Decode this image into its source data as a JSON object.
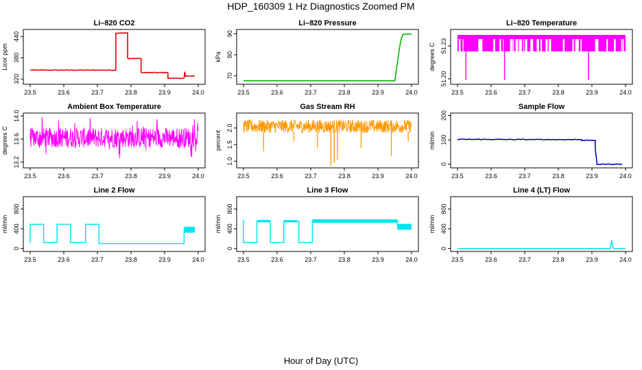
{
  "figure": {
    "title": "HDP_160309  1 Hz Diagnostics Zoomed PM",
    "xlabel": "Hour of Day (UTC)"
  },
  "chart_data": [
    {
      "type": "line",
      "title": "Li–820 CO2",
      "ylabel": "Licor ppm",
      "color": "#dd0000",
      "xlim": [
        23.5,
        24.0
      ],
      "ylim": [
        305,
        460
      ],
      "xticks": [
        "23.5",
        "23.6",
        "23.7",
        "23.8",
        "23.9",
        "24.0"
      ],
      "yticks": [
        320,
        380,
        440
      ],
      "ytick_labels": [
        "320",
        "380",
        "440"
      ],
      "x": [
        23.5,
        23.755,
        23.755,
        23.79,
        23.79,
        23.83,
        23.83,
        23.91,
        23.91,
        23.958,
        23.96,
        23.962,
        23.97,
        23.99
      ],
      "y": [
        345,
        345,
        450,
        450,
        378,
        378,
        338,
        338,
        322,
        322,
        340,
        328,
        328,
        328
      ]
    },
    {
      "type": "line",
      "title": "Li–820 Pressure",
      "ylabel": "kPa",
      "color": "#00bb00",
      "xlim": [
        23.5,
        24.0
      ],
      "ylim": [
        66,
        92
      ],
      "xticks": [
        "23.5",
        "23.6",
        "23.7",
        "23.8",
        "23.9",
        "24.0"
      ],
      "yticks": [
        70,
        80,
        90
      ],
      "ytick_labels": [
        "70",
        "80",
        "90"
      ],
      "x": [
        23.5,
        23.95,
        23.95,
        23.965,
        23.97,
        23.975,
        24.0
      ],
      "y": [
        67.7,
        67.7,
        67.4,
        84,
        88,
        89.8,
        89.8
      ]
    },
    {
      "type": "line",
      "title": "Li–820 Temperature",
      "ylabel": "degrees C",
      "color": "#ff00ff",
      "xlim": [
        23.5,
        24.0
      ],
      "ylim": [
        51.195,
        51.245
      ],
      "xticks": [
        "23.5",
        "23.6",
        "23.7",
        "23.8",
        "23.9",
        "24.0"
      ],
      "yticks": [
        51.2,
        51.23
      ],
      "ytick_labels": [
        "51.20",
        "51.23"
      ],
      "band": [
        51.225,
        51.24
      ],
      "dips_x": [
        23.525,
        23.64,
        23.89
      ],
      "dips_y": 51.199
    },
    {
      "type": "line",
      "title": "Ambient Box Temperature",
      "ylabel": "degrees C",
      "color": "#ff00ff",
      "xlim": [
        23.5,
        24.0
      ],
      "ylim": [
        13.1,
        14.05
      ],
      "xticks": [
        "23.5",
        "23.6",
        "23.7",
        "23.8",
        "23.9",
        "24.0"
      ],
      "yticks": [
        13.2,
        13.6,
        14.0
      ],
      "ytick_labels": [
        "13.2",
        "13.6",
        "14.0"
      ],
      "band": [
        13.45,
        13.8
      ]
    },
    {
      "type": "line",
      "title": "Gas Stream RH",
      "ylabel": "percent",
      "color": "#ff9900",
      "xlim": [
        23.5,
        24.0
      ],
      "ylim": [
        0.8,
        2.45
      ],
      "xticks": [
        "23.5",
        "23.6",
        "23.7",
        "23.8",
        "23.9",
        "24.0"
      ],
      "yticks": [
        1.0,
        1.5,
        2.0
      ],
      "ytick_labels": [
        "1.0",
        "1.5",
        "2.0"
      ],
      "band": [
        1.85,
        2.25
      ],
      "dips_x": [
        23.56,
        23.65,
        23.72,
        23.76,
        23.77,
        23.78,
        23.85,
        23.94,
        23.99
      ],
      "dips_y": [
        1.3,
        1.6,
        1.4,
        0.85,
        0.95,
        1.05,
        1.4,
        1.15,
        1.6
      ]
    },
    {
      "type": "line",
      "title": "Sample Flow",
      "ylabel": "ml/min",
      "color": "#0000cc",
      "xlim": [
        23.5,
        24.0
      ],
      "ylim": [
        -15,
        210
      ],
      "xticks": [
        "23.5",
        "23.6",
        "23.7",
        "23.8",
        "23.9",
        "24.0"
      ],
      "yticks": [
        0,
        100,
        200
      ],
      "ytick_labels": [
        "0",
        "100",
        "200"
      ],
      "x": [
        23.5,
        23.87,
        23.87,
        23.91,
        23.91,
        23.915,
        23.915,
        23.99
      ],
      "y": [
        102,
        101,
        98,
        98,
        60,
        5,
        0,
        0
      ]
    },
    {
      "type": "line",
      "title": "Line 2 Flow",
      "ylabel": "ml/min",
      "color": "#00e5ee",
      "xlim": [
        23.5,
        24.0
      ],
      "ylim": [
        -60,
        1050
      ],
      "xticks": [
        "23.5",
        "23.6",
        "23.7",
        "23.8",
        "23.9",
        "24.0"
      ],
      "yticks": [
        0,
        400,
        800
      ],
      "ytick_labels": [
        "0",
        "400",
        "800"
      ],
      "x": [
        23.5,
        23.5,
        23.54,
        23.54,
        23.58,
        23.58,
        23.62,
        23.62,
        23.665,
        23.665,
        23.705,
        23.705,
        23.958,
        23.958,
        23.99
      ],
      "y": [
        120,
        490,
        490,
        120,
        120,
        490,
        490,
        120,
        120,
        490,
        490,
        100,
        100,
        380,
        380
      ]
    },
    {
      "type": "line",
      "title": "Line 3 Flow",
      "ylabel": "ml/min",
      "color": "#00e5ee",
      "xlim": [
        23.5,
        24.0
      ],
      "ylim": [
        -60,
        1050
      ],
      "xticks": [
        "23.5",
        "23.6",
        "23.7",
        "23.8",
        "23.9",
        "24.0"
      ],
      "yticks": [
        0,
        400,
        800
      ],
      "ytick_labels": [
        "0",
        "400",
        "800"
      ],
      "x": [
        23.5,
        23.5,
        23.5,
        23.54,
        23.54,
        23.58,
        23.58,
        23.62,
        23.62,
        23.665,
        23.665,
        23.705,
        23.705,
        23.958,
        23.958,
        24.0
      ],
      "y": [
        580,
        120,
        120,
        120,
        550,
        550,
        120,
        120,
        550,
        550,
        120,
        120,
        550,
        550,
        440,
        440
      ]
    },
    {
      "type": "line",
      "title": "Line 4 (LT) Flow",
      "ylabel": "ml/min",
      "color": "#00e5ee",
      "xlim": [
        23.5,
        24.0
      ],
      "ylim": [
        -60,
        1050
      ],
      "xticks": [
        "23.5",
        "23.6",
        "23.7",
        "23.8",
        "23.9",
        "24.0"
      ],
      "yticks": [
        0,
        400,
        800
      ],
      "ytick_labels": [
        "0",
        "400",
        "800"
      ],
      "x": [
        23.5,
        23.955,
        23.958,
        23.96,
        23.962,
        23.965,
        24.0
      ],
      "y": [
        0,
        0,
        160,
        120,
        40,
        0,
        0
      ]
    }
  ]
}
